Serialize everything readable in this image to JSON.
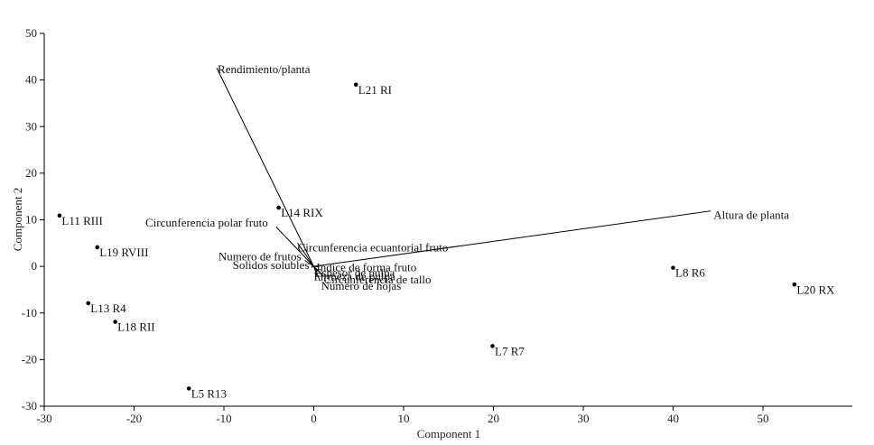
{
  "chart_data": {
    "type": "scatter",
    "subtype": "pca-biplot",
    "xlabel": "Component 1",
    "ylabel": "Component 2",
    "xlim": [
      -30,
      60
    ],
    "ylim": [
      -30,
      50
    ],
    "xticks": [
      -30,
      -20,
      -10,
      0,
      10,
      20,
      30,
      40,
      50
    ],
    "yticks": [
      -30,
      -20,
      -10,
      0,
      10,
      20,
      30,
      40,
      50
    ],
    "grid": false,
    "points": [
      {
        "label": "L21 RI",
        "x": 4.7,
        "y": 39.0
      },
      {
        "label": "L14 RIX",
        "x": -3.9,
        "y": 12.6
      },
      {
        "label": "L11 RIII",
        "x": -28.3,
        "y": 10.9
      },
      {
        "label": "L19 RVIII",
        "x": -24.1,
        "y": 4.1
      },
      {
        "label": "L13 R4",
        "x": -25.1,
        "y": -7.9
      },
      {
        "label": "L18 RII",
        "x": -22.1,
        "y": -11.9
      },
      {
        "label": "L5 R13",
        "x": -13.9,
        "y": -26.2
      },
      {
        "label": "L7 R7",
        "x": 19.9,
        "y": -17.1
      },
      {
        "label": "L8 R6",
        "x": 40.0,
        "y": -0.3
      },
      {
        "label": "L20 RX",
        "x": 53.5,
        "y": -3.9
      }
    ],
    "vectors": [
      {
        "label": "Rendimiento/planta",
        "x": -10.8,
        "y": 42.6
      },
      {
        "label": "Altura de planta",
        "x": 44.2,
        "y": 11.9
      },
      {
        "label": "Circunferencia polar fruto",
        "x": -4.2,
        "y": 8.5
      },
      {
        "label": "Circunferencia ecuantorial fruto",
        "x": -1.8,
        "y": 5.0
      },
      {
        "label": "Numero de frutos",
        "x": -1.0,
        "y": 1.3
      },
      {
        "label": "Solidos solubles",
        "x": -0.3,
        "y": -0.2
      },
      {
        "label": "Indice de forma fruto",
        "x": 0.6,
        "y": -0.1
      },
      {
        "label": "Espesor de pulpa",
        "x": 0.4,
        "y": -1.0
      },
      {
        "label": "Firmeza de pulpa",
        "x": 0.3,
        "y": -1.6
      },
      {
        "label": "Circunferencia de tallo",
        "x": 1.1,
        "y": -2.1
      },
      {
        "label": "Numero de hojas",
        "x": 0.7,
        "y": -3.1
      }
    ]
  }
}
